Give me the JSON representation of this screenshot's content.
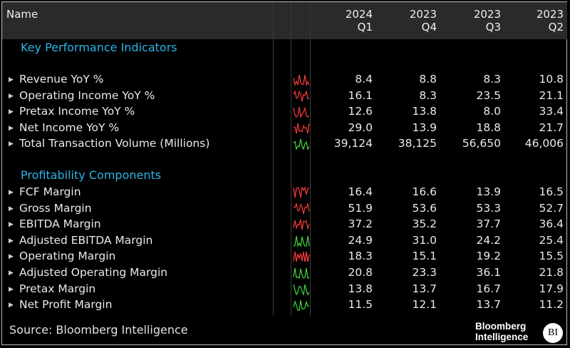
{
  "header": {
    "name_label": "Name",
    "columns": [
      {
        "year": "2024",
        "quarter": "Q1"
      },
      {
        "year": "2023",
        "quarter": "Q4"
      },
      {
        "year": "2023",
        "quarter": "Q3"
      },
      {
        "year": "2023",
        "quarter": "Q2"
      }
    ]
  },
  "sections": [
    {
      "title": "Key Performance Indicators",
      "rows": [
        {
          "label": "Revenue YoY %",
          "values": [
            "8.4",
            "8.8",
            "8.3",
            "10.8"
          ],
          "spark_color": "#ff3b3b"
        },
        {
          "label": "Operating Income YoY %",
          "values": [
            "16.1",
            "8.3",
            "23.5",
            "21.1"
          ],
          "spark_color": "#ff3b3b"
        },
        {
          "label": "Pretax Income YoY %",
          "values": [
            "12.6",
            "13.8",
            "8.0",
            "33.4"
          ],
          "spark_color": "#ff3b3b"
        },
        {
          "label": "Net Income YoY %",
          "values": [
            "29.0",
            "13.9",
            "18.8",
            "21.7"
          ],
          "spark_color": "#ff3b3b"
        },
        {
          "label": "Total Transaction Volume (Millions)",
          "values": [
            "39,124",
            "38,125",
            "56,650",
            "46,006"
          ],
          "spark_color": "#3ddc3d"
        }
      ]
    },
    {
      "title": "Profitability Components",
      "rows": [
        {
          "label": "FCF Margin",
          "values": [
            "16.4",
            "16.6",
            "13.9",
            "16.5"
          ],
          "spark_color": "#ff3b3b"
        },
        {
          "label": "Gross Margin",
          "values": [
            "51.9",
            "53.6",
            "53.3",
            "52.7"
          ],
          "spark_color": "#ff3b3b"
        },
        {
          "label": "EBITDA Margin",
          "values": [
            "37.2",
            "35.2",
            "37.7",
            "36.4"
          ],
          "spark_color": "#ff3b3b"
        },
        {
          "label": "Adjusted EBITDA Margin",
          "values": [
            "24.9",
            "31.0",
            "24.2",
            "25.4"
          ],
          "spark_color": "#3ddc3d"
        },
        {
          "label": "Operating Margin",
          "values": [
            "18.3",
            "15.1",
            "19.2",
            "15.5"
          ],
          "spark_color": "#ff3b3b"
        },
        {
          "label": "Adjusted Operating Margin",
          "values": [
            "20.8",
            "23.3",
            "36.1",
            "21.8"
          ],
          "spark_color": "#3ddc3d"
        },
        {
          "label": "Pretax Margin",
          "values": [
            "13.8",
            "13.7",
            "16.7",
            "17.9"
          ],
          "spark_color": "#3ddc3d"
        },
        {
          "label": "Net Profit Margin",
          "values": [
            "11.5",
            "12.1",
            "13.7",
            "11.2"
          ],
          "spark_color": "#3ddc3d"
        }
      ]
    }
  ],
  "footer": {
    "source": "Source: Bloomberg Intelligence",
    "logo_line1": "Bloomberg",
    "logo_line2": "Intelligence",
    "logo_badge": "BI"
  },
  "expand_icon": "triangle-right-icon"
}
